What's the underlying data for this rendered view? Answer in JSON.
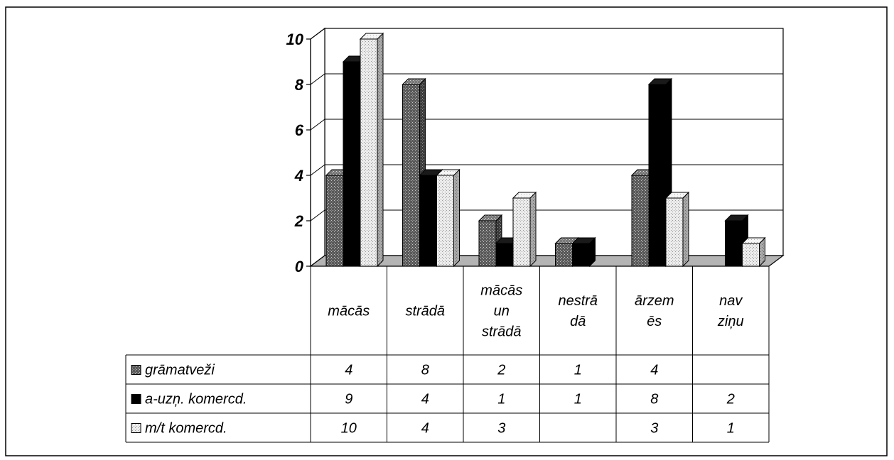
{
  "chart_data": {
    "type": "bar",
    "title": "",
    "xlabel": "",
    "ylabel": "",
    "ylim": [
      0,
      10
    ],
    "yticks": [
      "0",
      "2",
      "4",
      "6",
      "8",
      "10"
    ],
    "grid": true,
    "legend": "data-table",
    "categories": [
      [
        "mācās"
      ],
      [
        "strādā"
      ],
      [
        "mācās",
        "un",
        "strādā"
      ],
      [
        "nestrā",
        "dā"
      ],
      [
        "ārzem",
        "ēs"
      ],
      [
        "nav",
        "ziņu"
      ]
    ],
    "series": [
      {
        "name": "grāmatveži",
        "color": "#6e6e6e",
        "pattern": "dots-dark",
        "values": [
          4,
          8,
          2,
          1,
          4,
          null
        ],
        "labels": [
          "4",
          "8",
          "2",
          "1",
          "4",
          ""
        ]
      },
      {
        "name": "a-uzņ. komercd.",
        "color": "#000000",
        "pattern": "solid",
        "values": [
          9,
          4,
          1,
          1,
          8,
          2
        ],
        "labels": [
          "9",
          "4",
          "1",
          "1",
          "8",
          "2"
        ]
      },
      {
        "name": "m/t komercd.",
        "color": "#dcdcdc",
        "pattern": "dots-light",
        "values": [
          10,
          4,
          3,
          null,
          3,
          1
        ],
        "labels": [
          "10",
          "4",
          "3",
          "",
          "3",
          "1"
        ]
      }
    ]
  }
}
